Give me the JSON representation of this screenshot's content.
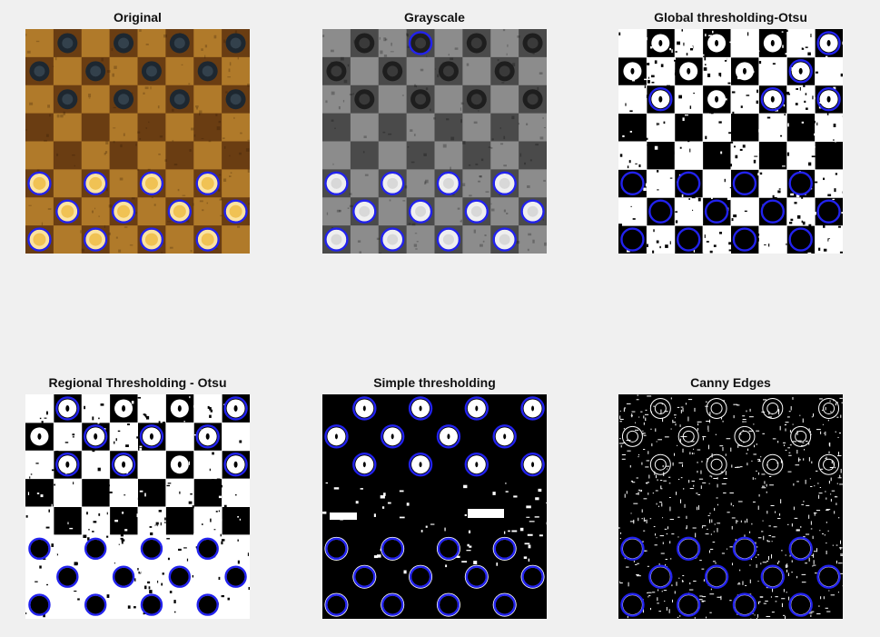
{
  "figure": {
    "panels": [
      {
        "title": "Original",
        "style": "original"
      },
      {
        "title": "Grayscale",
        "style": "gray"
      },
      {
        "title": "Global thresholding-Otsu",
        "style": "global"
      },
      {
        "title": "Regional Thresholding - Otsu",
        "style": "regional"
      },
      {
        "title": "Simple thresholding",
        "style": "simple"
      },
      {
        "title": "Canny Edges",
        "style": "canny"
      }
    ],
    "colors": {
      "background": "#f0f0f0",
      "detection_circle": "#2222ee",
      "wood_light": "#b07a2a",
      "wood_dark": "#6a3d12",
      "dark_piece": "#1d2730",
      "light_piece": "#f0c254"
    }
  }
}
